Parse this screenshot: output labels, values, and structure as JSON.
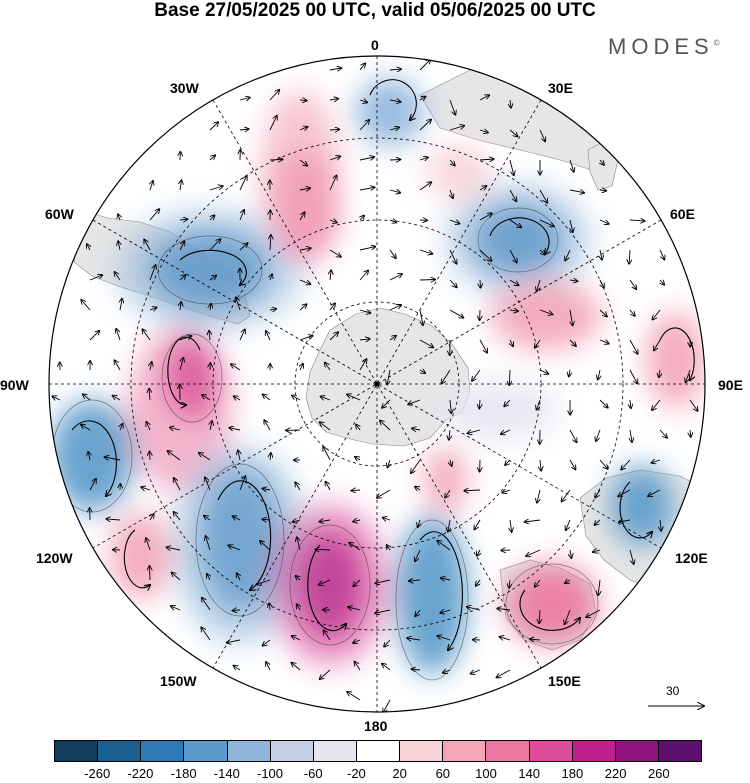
{
  "title": "Base 27/05/2025 00 UTC, valid 05/06/2025 00 UTC",
  "brand": {
    "name": "MODES",
    "mark": "©"
  },
  "projection": "south-polar-stereographic",
  "longitude_labels": {
    "top": "0",
    "top_left": "30W",
    "top_right": "30E",
    "upper_left": "60W",
    "upper_right": "60E",
    "left": "90W",
    "right": "90E",
    "lower_left": "120W",
    "lower_right": "120E",
    "bottom_left": "150W",
    "bottom_right": "150E",
    "bottom": "180"
  },
  "vector_reference": {
    "label": "30",
    "icon": "arrow-right-icon"
  },
  "colorbar": {
    "colors": [
      "#0f3d5c",
      "#1a5f8f",
      "#2e7ab6",
      "#5b9bcb",
      "#90b5db",
      "#c4cfe6",
      "#e6e6f2",
      "#ffffff",
      "#f8d4d8",
      "#f3a6b8",
      "#eb78a0",
      "#dd4d9b",
      "#c0208e",
      "#8f137f",
      "#5e106f"
    ],
    "tick_labels": [
      "-260",
      "-220",
      "-180",
      "-140",
      "-100",
      "-60",
      "-20",
      "20",
      "60",
      "100",
      "140",
      "180",
      "220",
      "260"
    ]
  },
  "colors": {
    "land": "#e6e6e6",
    "gridline": "#000000"
  }
}
